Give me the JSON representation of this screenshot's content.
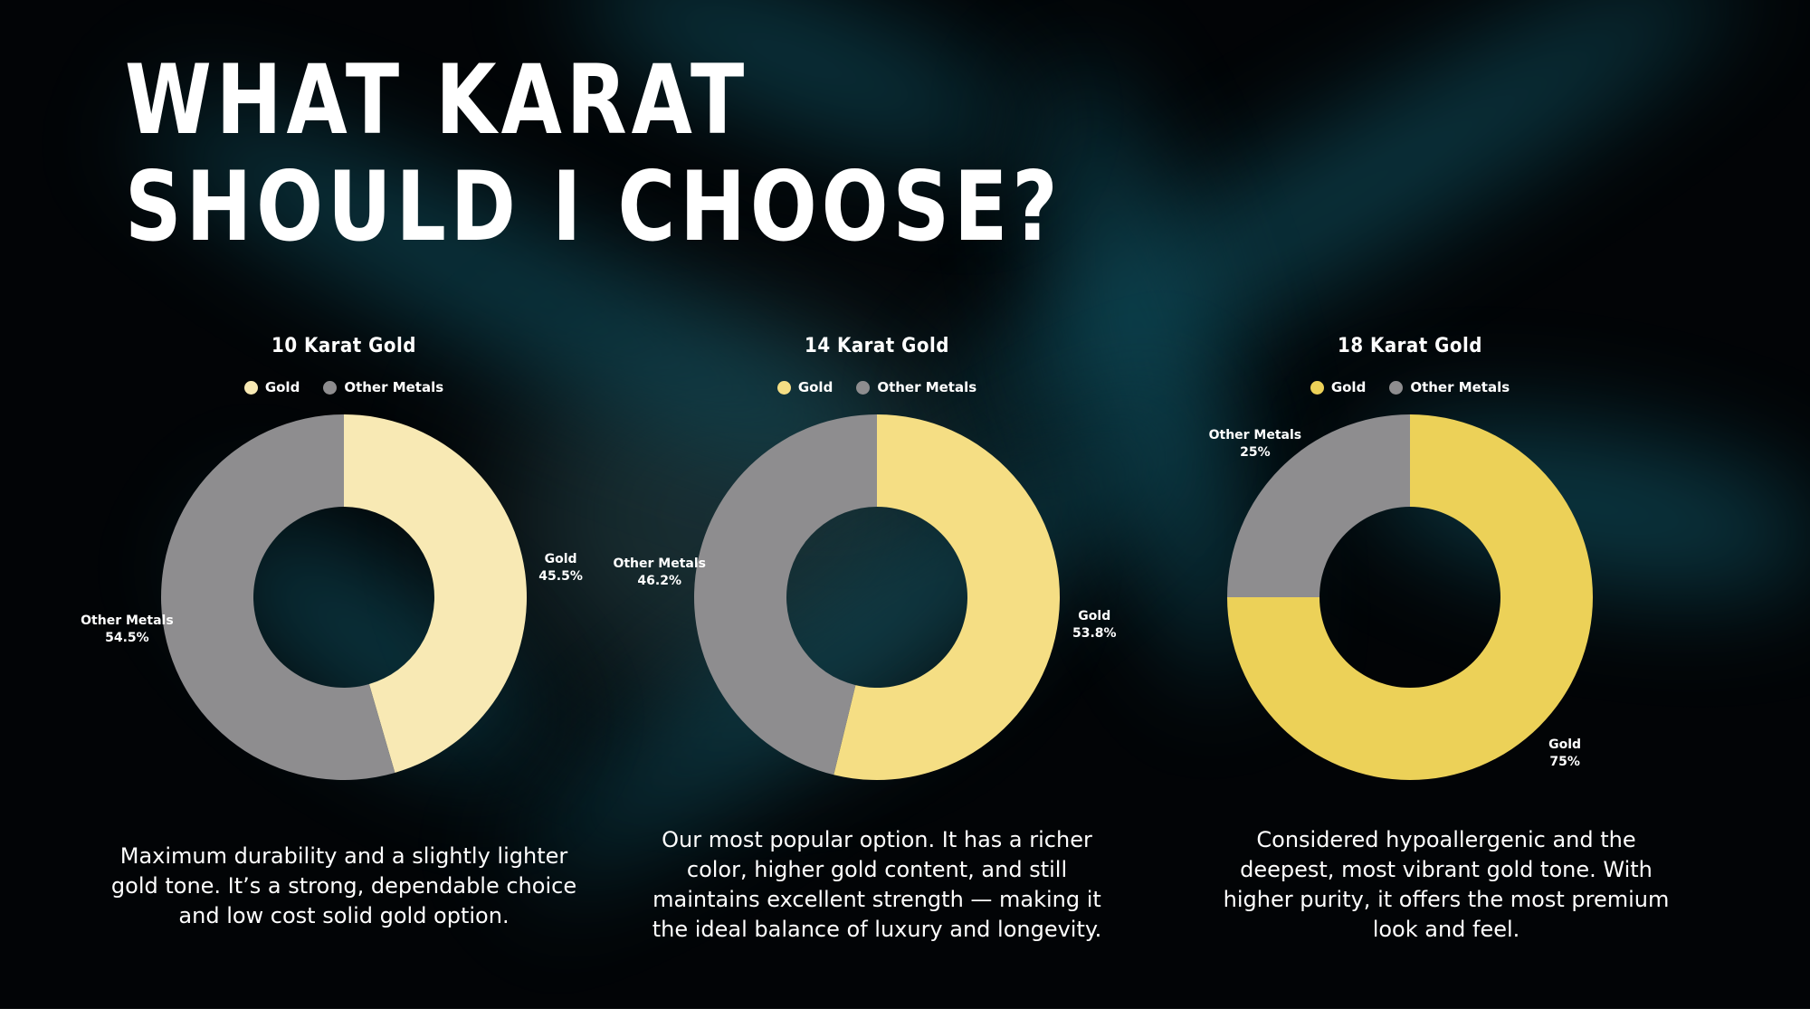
{
  "page": {
    "title_line1": "WHAT KARAT",
    "title_line2": "SHOULD I CHOOSE?"
  },
  "colors": {
    "other_metals": "#8e8d8f",
    "background": "#020406"
  },
  "chart_data": [
    {
      "type": "pie",
      "title": "10 Karat Gold",
      "legend": [
        "Gold",
        "Other Metals"
      ],
      "series": [
        {
          "name": "Gold",
          "value": 45.5,
          "label": "45.5%",
          "color": "#f8e9b4"
        },
        {
          "name": "Other Metals",
          "value": 54.5,
          "label": "54.5%",
          "color": "#8e8d8f"
        }
      ],
      "description": "Maximum durability and a slightly lighter gold tone. It’s a strong, dependable choice and low cost solid gold option."
    },
    {
      "type": "pie",
      "title": "14 Karat Gold",
      "legend": [
        "Gold",
        "Other Metals"
      ],
      "series": [
        {
          "name": "Gold",
          "value": 53.8,
          "label": "53.8%",
          "color": "#f5de84"
        },
        {
          "name": "Other Metals",
          "value": 46.2,
          "label": "46.2%",
          "color": "#8e8d8f"
        }
      ],
      "description": "Our most popular option. It has a richer color, higher gold content, and still maintains excellent strength — making it the ideal balance of luxury and longevity."
    },
    {
      "type": "pie",
      "title": "18 Karat Gold",
      "legend": [
        "Gold",
        "Other Metals"
      ],
      "series": [
        {
          "name": "Gold",
          "value": 75,
          "label": "75%",
          "color": "#ecd158"
        },
        {
          "name": "Other Metals",
          "value": 25,
          "label": "25%",
          "color": "#8e8d8f"
        }
      ],
      "description": "Considered hypoallergenic and the deepest, most vibrant gold tone. With higher purity, it offers the most premium look and feel."
    }
  ]
}
